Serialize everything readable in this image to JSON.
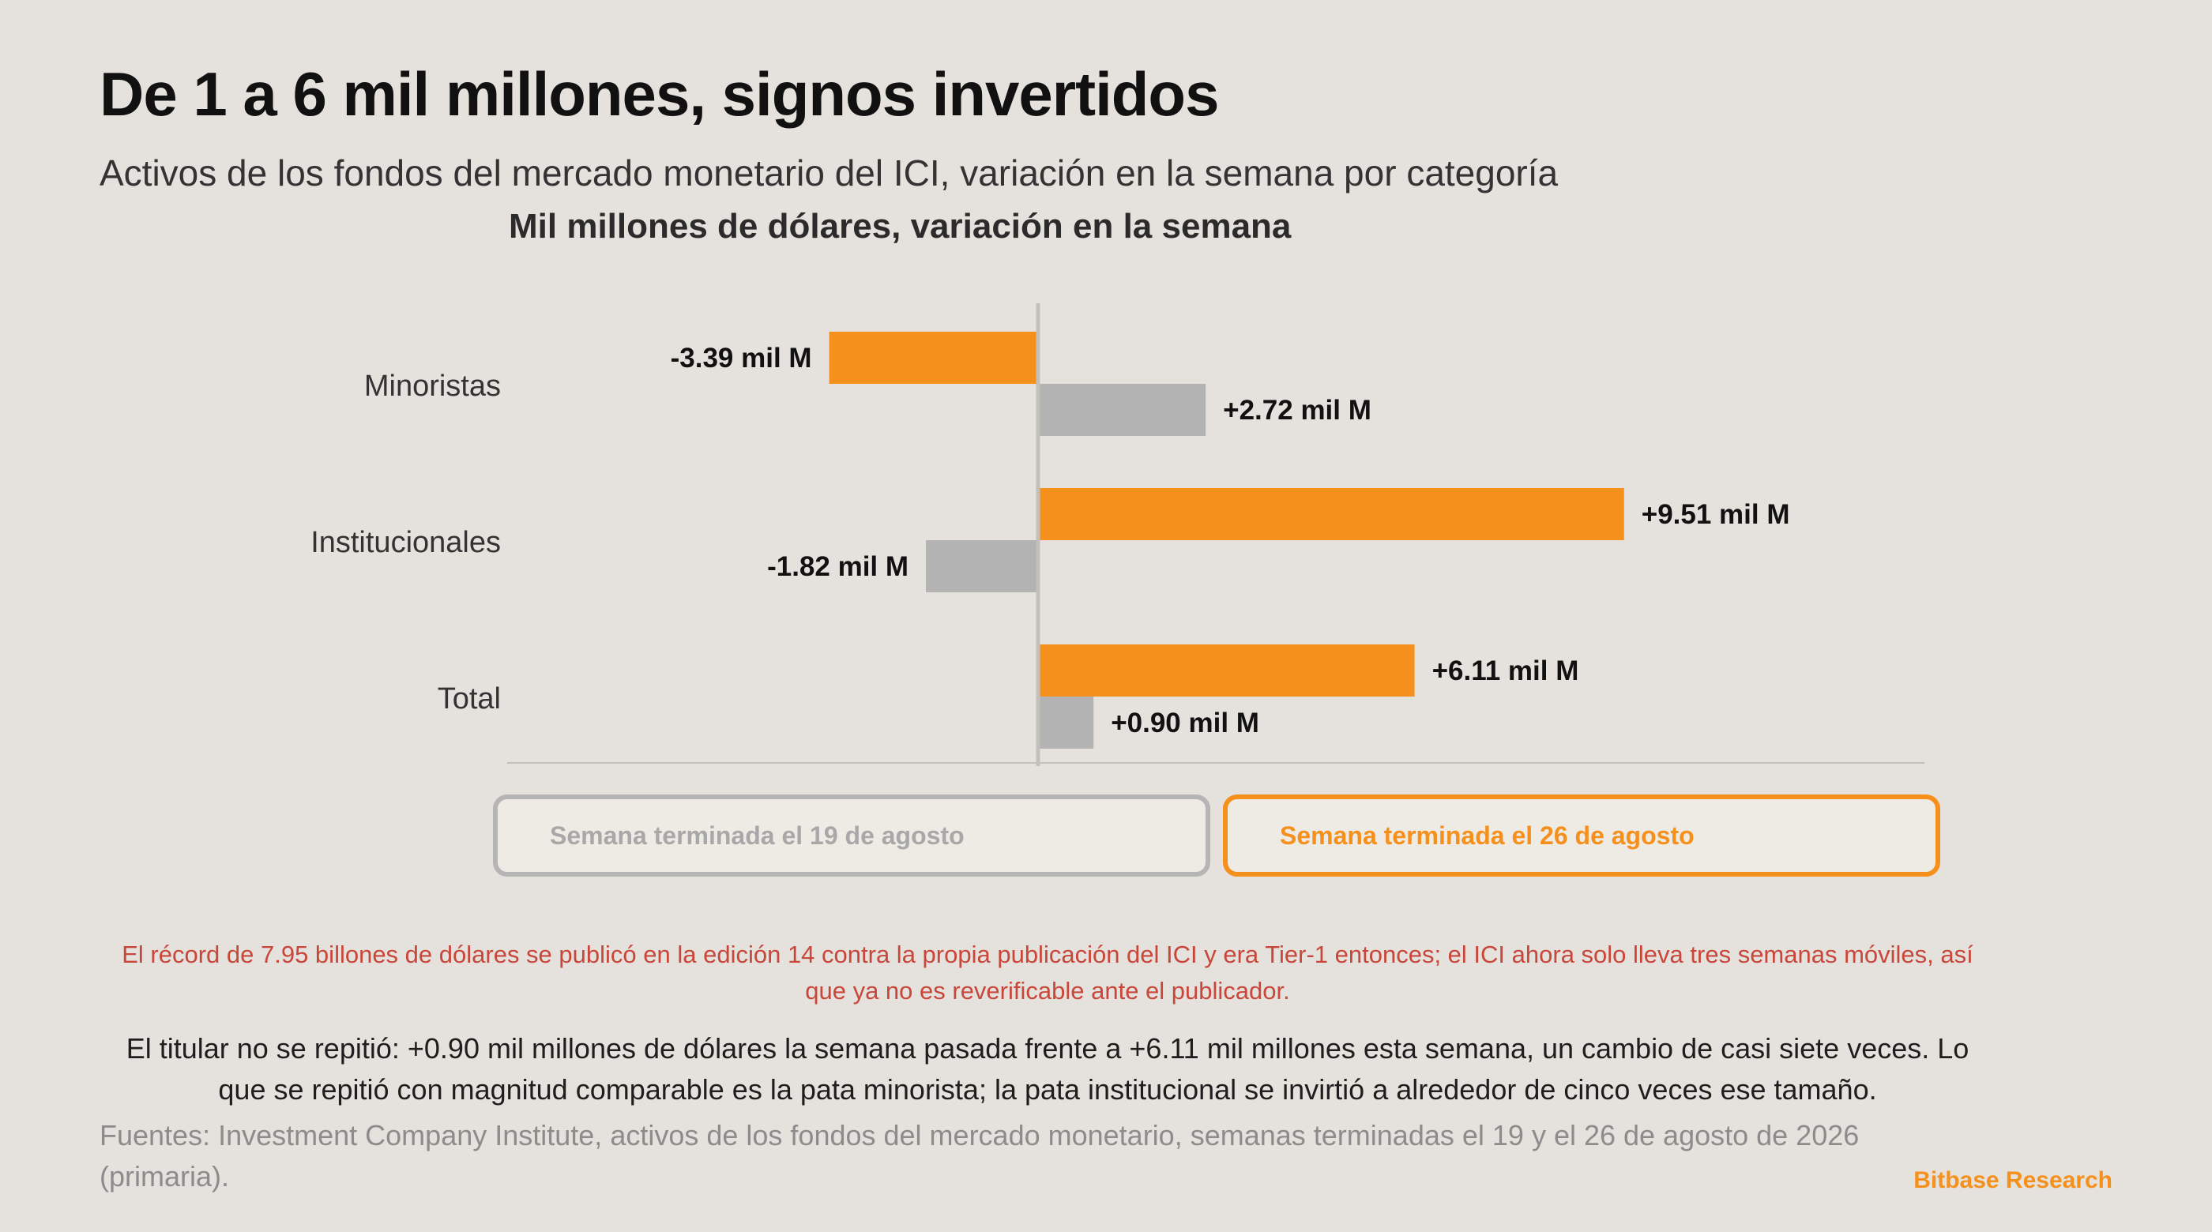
{
  "header": {
    "title": "De 1 a 6 mil millones, signos invertidos",
    "subtitle": "Activos de los fondos del mercado monetario del ICI, variación en la semana por categoría"
  },
  "chart_data": {
    "type": "bar",
    "orientation": "horizontal",
    "title": "Mil millones de dólares, variación en la semana",
    "categories": [
      "Minoristas",
      "Institucionales",
      "Total"
    ],
    "series": [
      {
        "name": "Semana terminada el 26 de agosto",
        "values": [
          -3.39,
          9.51,
          6.11
        ],
        "labels": [
          "-3.39 mil M",
          "+9.51 mil M",
          "+6.11 mil M"
        ],
        "color": "#f5901d"
      },
      {
        "name": "Semana terminada el 19 de agosto",
        "values": [
          2.72,
          -1.82,
          0.9
        ],
        "labels": [
          "+2.72 mil M",
          "-1.82 mil M",
          "+0.90 mil M"
        ],
        "color": "#b3b3b3"
      }
    ],
    "xlim": [
      -8.5,
      14.4
    ],
    "grid": false,
    "legend_position": "bottom"
  },
  "legend": {
    "prev_label": "Semana terminada el 19 de agosto",
    "curr_label": "Semana terminada el 26 de agosto"
  },
  "notes": {
    "correction": "El récord de 7.95 billones de dólares se publicó en la edición 14 contra la propia publicación del ICI y era Tier-1 entonces; el ICI ahora solo lleva tres semanas móviles, así que ya no es reverificable ante el publicador.",
    "body": "El titular no se repitió: +0.90 mil millones de dólares la semana pasada frente a +6.11 mil millones esta semana, un cambio de casi siete veces. Lo que se repitió con magnitud comparable es la pata minorista; la pata institucional se invirtió a alrededor de cinco veces ese tamaño.",
    "sources": "Fuentes: Investment Company Institute, activos de los fondos del mercado monetario, semanas terminadas el 19 y el 26 de agosto de 2026 (primaria).",
    "brand": "Bitbase Research"
  },
  "colors": {
    "current": "#f5901d",
    "previous": "#b3b3b3",
    "axis": "#c3bfba",
    "background": "#e5e1dc"
  }
}
